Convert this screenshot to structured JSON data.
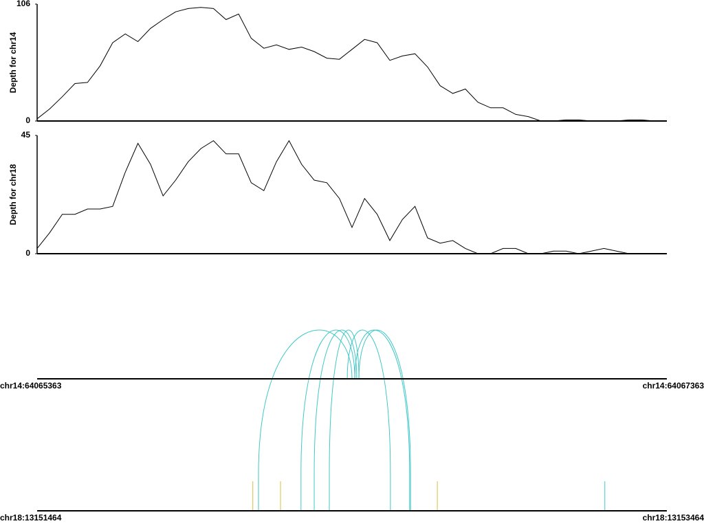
{
  "chart_data": [
    {
      "type": "line",
      "ylabel": "Depth for chr14",
      "color": "#000000",
      "xlim": [
        64065363,
        64067363
      ],
      "ylim": [
        0,
        106
      ],
      "yticks": [
        0,
        106
      ],
      "x": [
        64065363,
        64065403,
        64065443,
        64065483,
        64065523,
        64065563,
        64065603,
        64065643,
        64065683,
        64065723,
        64065763,
        64065803,
        64065843,
        64065883,
        64065923,
        64065963,
        64066003,
        64066043,
        64066083,
        64066123,
        64066163,
        64066203,
        64066243,
        64066283,
        64066323,
        64066363,
        64066403,
        64066443,
        64066483,
        64066523,
        64066563,
        64066603,
        64066643,
        64066683,
        64066723,
        64066763,
        64066803,
        64066843,
        64066883,
        64066923,
        64066963,
        64067003,
        64067043,
        64067083,
        64067123,
        64067163,
        64067203,
        64067243,
        64067283,
        64067323,
        64067363
      ],
      "values": [
        2,
        11,
        22,
        34,
        35,
        50,
        71,
        79,
        72,
        84,
        92,
        99,
        102,
        103,
        102,
        92,
        97,
        75,
        66,
        69,
        65,
        67,
        63,
        57,
        56,
        65,
        74,
        71,
        55,
        59,
        61,
        49,
        32,
        25,
        29,
        17,
        12,
        12,
        6,
        4,
        0,
        0,
        1,
        1,
        0,
        0,
        0,
        1,
        1,
        0,
        0
      ]
    },
    {
      "type": "line",
      "ylabel": "Depth for chr18",
      "color": "#000000",
      "xlim": [
        13151464,
        13153464
      ],
      "ylim": [
        0,
        45
      ],
      "yticks": [
        0,
        45
      ],
      "x": [
        13151464,
        13151504,
        13151544,
        13151584,
        13151624,
        13151664,
        13151704,
        13151744,
        13151784,
        13151824,
        13151864,
        13151904,
        13151944,
        13151984,
        13152024,
        13152064,
        13152104,
        13152144,
        13152184,
        13152224,
        13152264,
        13152304,
        13152344,
        13152384,
        13152424,
        13152464,
        13152504,
        13152544,
        13152584,
        13152624,
        13152664,
        13152704,
        13152744,
        13152784,
        13152824,
        13152864,
        13152904,
        13152944,
        13152984,
        13153024,
        13153064,
        13153104,
        13153144,
        13153184,
        13153224,
        13153264,
        13153304,
        13153344,
        13153384,
        13153424,
        13153464
      ],
      "values": [
        2,
        8,
        15,
        15,
        17,
        17,
        18,
        31,
        42,
        34,
        22,
        28,
        35,
        40,
        43,
        38,
        38,
        27,
        24,
        35,
        43,
        34,
        28,
        27,
        21,
        10,
        21,
        15,
        5,
        13,
        18,
        6,
        4,
        5,
        2,
        0,
        0,
        2,
        2,
        0,
        0,
        1,
        1,
        0,
        1,
        2,
        1,
        0,
        0,
        0,
        0
      ]
    },
    {
      "type": "arc",
      "color": "#40c8c8",
      "top": {
        "xlim": [
          64065363,
          64067363
        ],
        "xticks": [
          {
            "value": 64065363,
            "label": "chr14:64065363"
          },
          {
            "value": 64067363,
            "label": "chr14:64067363"
          }
        ]
      },
      "bottom": {
        "xlim": [
          13151464,
          13153464
        ],
        "xticks": [
          {
            "value": 13151464,
            "label": "chr18:13151464"
          },
          {
            "value": 13153464,
            "label": "chr18:13153464"
          }
        ]
      },
      "links": [
        {
          "top": 64066363,
          "bottom": 13152167
        },
        {
          "top": 64066372,
          "bottom": 13152302
        },
        {
          "top": 64066378,
          "bottom": 13152344
        },
        {
          "top": 64066385,
          "bottom": 13152392
        },
        {
          "top": 64066348,
          "bottom": 13152586
        },
        {
          "top": 64066372,
          "bottom": 13152647
        },
        {
          "top": 64066385,
          "bottom": 13152650
        }
      ],
      "marks": [
        {
          "x": 13152149,
          "color": "#d8c040"
        },
        {
          "x": 13152237,
          "color": "#d8c040"
        },
        {
          "x": 13152735,
          "color": "#d8c040"
        },
        {
          "x": 13153267,
          "color": "#40c8c8"
        }
      ]
    }
  ]
}
